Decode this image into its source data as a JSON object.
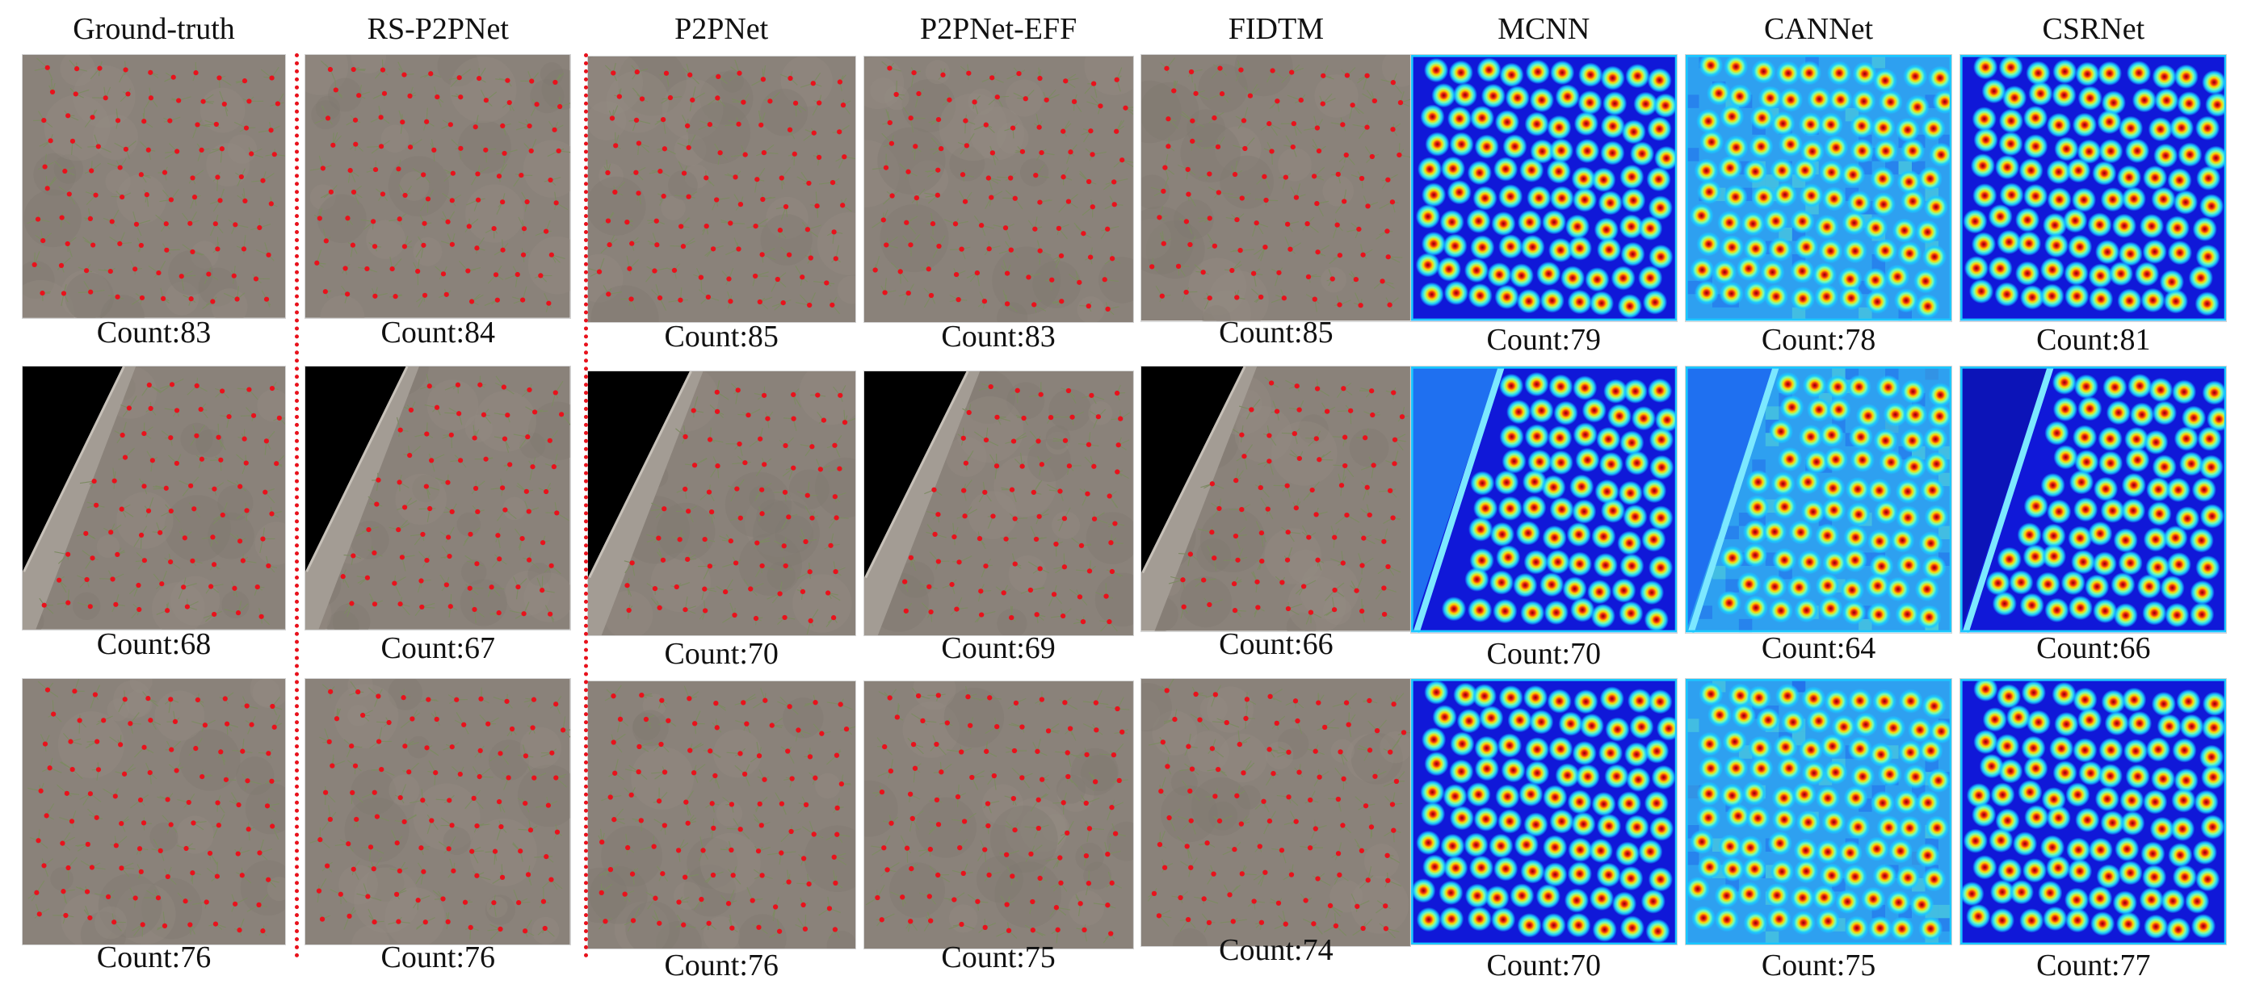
{
  "methods": [
    {
      "id": "ground-truth",
      "label": "Ground-truth",
      "kind": "photo"
    },
    {
      "id": "rs-p2pnet",
      "label": "RS-P2PNet",
      "kind": "photo"
    },
    {
      "id": "p2pnet",
      "label": "P2PNet",
      "kind": "photo"
    },
    {
      "id": "p2pnet-eff",
      "label": "P2PNet-EFF",
      "kind": "photo"
    },
    {
      "id": "fidtm",
      "label": "FIDTM",
      "kind": "photo"
    },
    {
      "id": "mcnn",
      "label": "MCNN",
      "kind": "density"
    },
    {
      "id": "cannet",
      "label": "CANNet",
      "kind": "density"
    },
    {
      "id": "csrnet",
      "label": "CSRNet",
      "kind": "density"
    }
  ],
  "rows": [
    {
      "scene": "field",
      "counts": [
        "Count:83",
        "Count:84",
        "Count:85",
        "Count:83",
        "Count:85",
        "Count:79",
        "Count:78",
        "Count:81"
      ]
    },
    {
      "scene": "field-with-road",
      "counts": [
        "Count:68",
        "Count:67",
        "Count:70",
        "Count:69",
        "Count:66",
        "Count:70",
        "Count:64",
        "Count:66"
      ]
    },
    {
      "scene": "field",
      "counts": [
        "Count:76",
        "Count:76",
        "Count:76",
        "Count:75",
        "Count:74",
        "Count:70",
        "Count:75",
        "Count:77"
      ]
    }
  ],
  "colors": {
    "soil": "#8a827a",
    "point_marker": "#e8121c",
    "divider": "#e8121c",
    "density_background": "#1018d8",
    "density_peak": "#e82010"
  }
}
